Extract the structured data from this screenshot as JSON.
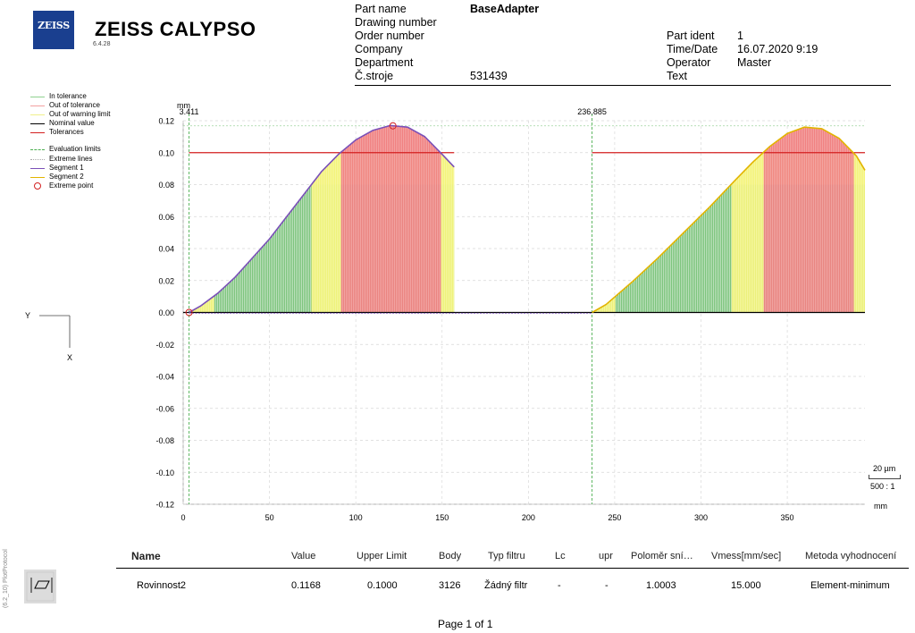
{
  "app": {
    "logo": "ZEISS",
    "name": "ZEISS  CALYPSO",
    "version": "6.4.28"
  },
  "header": {
    "left_labels": [
      "Part name",
      "Drawing number",
      "Order number",
      "Company",
      "Department",
      "Č.stroje"
    ],
    "part_name_value": "BaseAdapter",
    "machine_value": "531439",
    "right_labels": [
      "Part ident",
      "Time/Date",
      "Operator",
      "Text"
    ],
    "part_ident_value": "1",
    "time_date_value": "16.07.2020 9:19",
    "operator_value": "Master"
  },
  "legend": [
    {
      "label": "In tolerance",
      "color": "#8fd18f",
      "style": "solid"
    },
    {
      "label": "Out of tolerance",
      "color": "#f2a0a0",
      "style": "solid"
    },
    {
      "label": "Out of warning limit",
      "color": "#f0f08a",
      "style": "solid"
    },
    {
      "label": "Nominal value",
      "color": "#000000",
      "style": "solid"
    },
    {
      "label": "Tolerances",
      "color": "#d42020",
      "style": "solid"
    },
    {
      "label": "Evaluation limits",
      "color": "#4caf50",
      "style": "dash"
    },
    {
      "label": "Extreme lines",
      "color": "#aaaaaa",
      "style": "dot"
    },
    {
      "label": "Segment 1",
      "color": "#7a50b8",
      "style": "solid"
    },
    {
      "label": "Segment 2",
      "color": "#e2b400",
      "style": "solid"
    },
    {
      "label": "Extreme point",
      "color": "#d22020",
      "style": "circle"
    }
  ],
  "axis_indicator": {
    "y_label": "Y",
    "x_label": "X"
  },
  "scale": {
    "length": "20 µm",
    "ratio": "500 : 1"
  },
  "chart_data": {
    "type": "area",
    "title": "",
    "xlabel": "mm",
    "ylabel": "mm",
    "xlim": [
      0,
      395
    ],
    "ylim": [
      -0.12,
      0.12
    ],
    "xticks": [
      0,
      50,
      100,
      150,
      200,
      250,
      300,
      350
    ],
    "yticks": [
      0.12,
      0.1,
      0.08,
      0.06,
      0.04,
      0.02,
      0.0,
      -0.02,
      -0.04,
      -0.06,
      -0.08,
      -0.1,
      -0.12
    ],
    "ytick_labels": [
      "0.12",
      "0.10",
      "0.08",
      "0.06",
      "0.04",
      "0.02",
      "0.00",
      "-0.02",
      "-0.04",
      "-0.06",
      "-0.08",
      "-0.10",
      "-0.12"
    ],
    "tolerance_upper": 0.1,
    "warning_limit": 0.08,
    "nominal": 0.0,
    "evaluation_limits": [
      {
        "x": 3.411,
        "label": "3.411"
      },
      {
        "x": 236.885,
        "label": "236.885"
      }
    ],
    "series": [
      {
        "name": "Segment 1",
        "color": "#7a50b8",
        "x": [
          3.4,
          10,
          20,
          30,
          40,
          50,
          60,
          70,
          80,
          90,
          100,
          110,
          120,
          130,
          140,
          150,
          157
        ],
        "y": [
          0.0,
          0.004,
          0.012,
          0.022,
          0.034,
          0.046,
          0.06,
          0.074,
          0.088,
          0.099,
          0.108,
          0.114,
          0.117,
          0.116,
          0.11,
          0.099,
          0.091
        ]
      },
      {
        "name": "Segment 2",
        "color": "#e2b400",
        "x": [
          236.9,
          245,
          260,
          275,
          290,
          305,
          320,
          330,
          340,
          350,
          360,
          370,
          380,
          390,
          395
        ],
        "y": [
          0.0,
          0.005,
          0.019,
          0.034,
          0.05,
          0.066,
          0.083,
          0.094,
          0.104,
          0.112,
          0.116,
          0.115,
          0.109,
          0.098,
          0.089
        ]
      }
    ],
    "extreme_points": [
      {
        "x": 3.4,
        "y": 0.0
      },
      {
        "x": 121.5,
        "y": 0.1168
      }
    ]
  },
  "table": {
    "headers": [
      "Name",
      "Value",
      "Upper Limit",
      "Body",
      "Typ filtru",
      "Lc",
      "upr",
      "Poloměr sní…",
      "Vmess[mm/sec]",
      "Metoda vyhodnocení"
    ],
    "row": [
      "Rovinnost2",
      "0.1168",
      "0.1000",
      "3126",
      "Žádný filtr",
      "-",
      "-",
      "1.0003",
      "15.000",
      "Element-minimum"
    ]
  },
  "side_text": "(6.2_10) PlotProtocol",
  "footer": {
    "page": "Page 1 of 1"
  }
}
